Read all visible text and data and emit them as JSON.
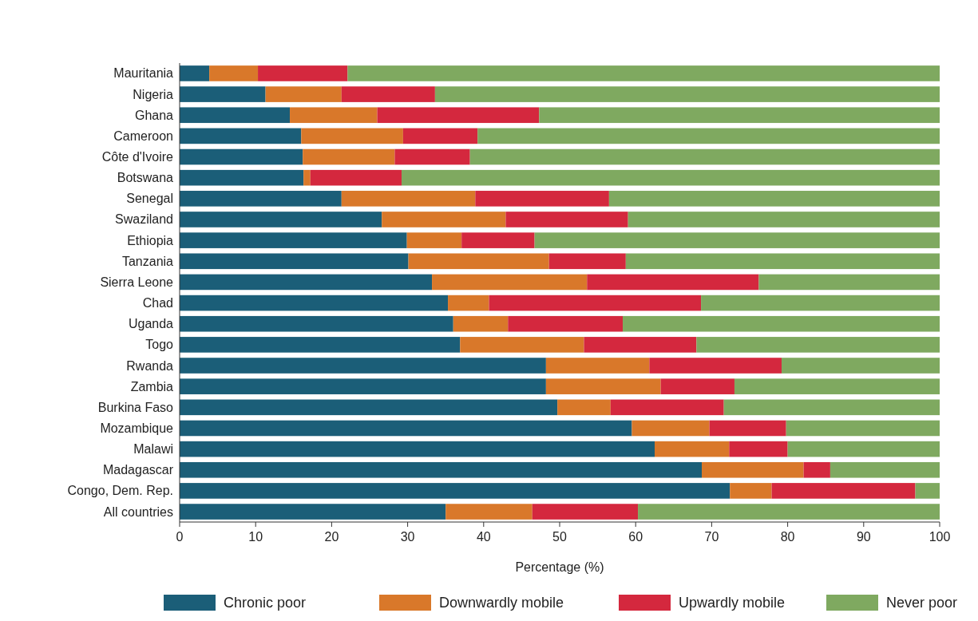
{
  "chart_data": {
    "type": "bar",
    "orientation": "horizontal",
    "stacked": true,
    "xlabel": "Percentage (%)",
    "categories": [
      "Mauritania",
      "Nigeria",
      "Ghana",
      "Cameroon",
      "Côte d'Ivoire",
      "Botswana",
      "Senegal",
      "Swaziland",
      "Ethiopia",
      "Tanzania",
      "Sierra Leone",
      "Chad",
      "Uganda",
      "Togo",
      "Rwanda",
      "Zambia",
      "Burkina Faso",
      "Mozambique",
      "Malawi",
      "Madagascar",
      "Congo, Dem. Rep.",
      "All countries"
    ],
    "series": [
      {
        "name": "Chronic poor",
        "color": "#1b5e78",
        "values": [
          3.9,
          11.3,
          14.5,
          16.0,
          16.2,
          16.3,
          21.3,
          26.6,
          29.9,
          30.1,
          33.2,
          35.3,
          36.0,
          36.9,
          48.2,
          48.2,
          49.7,
          59.5,
          62.5,
          68.7,
          72.4,
          35.0
        ]
      },
      {
        "name": "Downwardly mobile",
        "color": "#d9782a",
        "values": [
          6.4,
          10.0,
          11.5,
          13.4,
          12.1,
          0.9,
          17.6,
          16.3,
          7.2,
          18.5,
          20.4,
          5.4,
          7.2,
          16.3,
          13.6,
          15.1,
          7.0,
          10.2,
          9.8,
          13.4,
          5.5,
          11.4
        ]
      },
      {
        "name": "Upwardly mobile",
        "color": "#d4283e",
        "values": [
          11.8,
          12.3,
          21.3,
          9.8,
          9.9,
          12.0,
          17.6,
          16.1,
          9.6,
          10.1,
          22.6,
          27.9,
          15.1,
          14.8,
          17.4,
          9.7,
          14.9,
          10.1,
          7.7,
          3.5,
          18.9,
          13.9
        ]
      },
      {
        "name": "Never poor",
        "color": "#7fa960",
        "values": [
          77.9,
          66.4,
          52.7,
          60.8,
          61.8,
          70.8,
          43.5,
          41.0,
          53.3,
          41.3,
          23.8,
          31.4,
          41.7,
          32.0,
          20.8,
          27.0,
          28.4,
          20.2,
          20.0,
          14.4,
          3.2,
          39.7
        ]
      }
    ],
    "xlim": [
      0,
      100
    ],
    "xticks": [
      0,
      10,
      20,
      30,
      40,
      50,
      60,
      70,
      80,
      90,
      100
    ],
    "legend": "bottom",
    "grid": false
  }
}
